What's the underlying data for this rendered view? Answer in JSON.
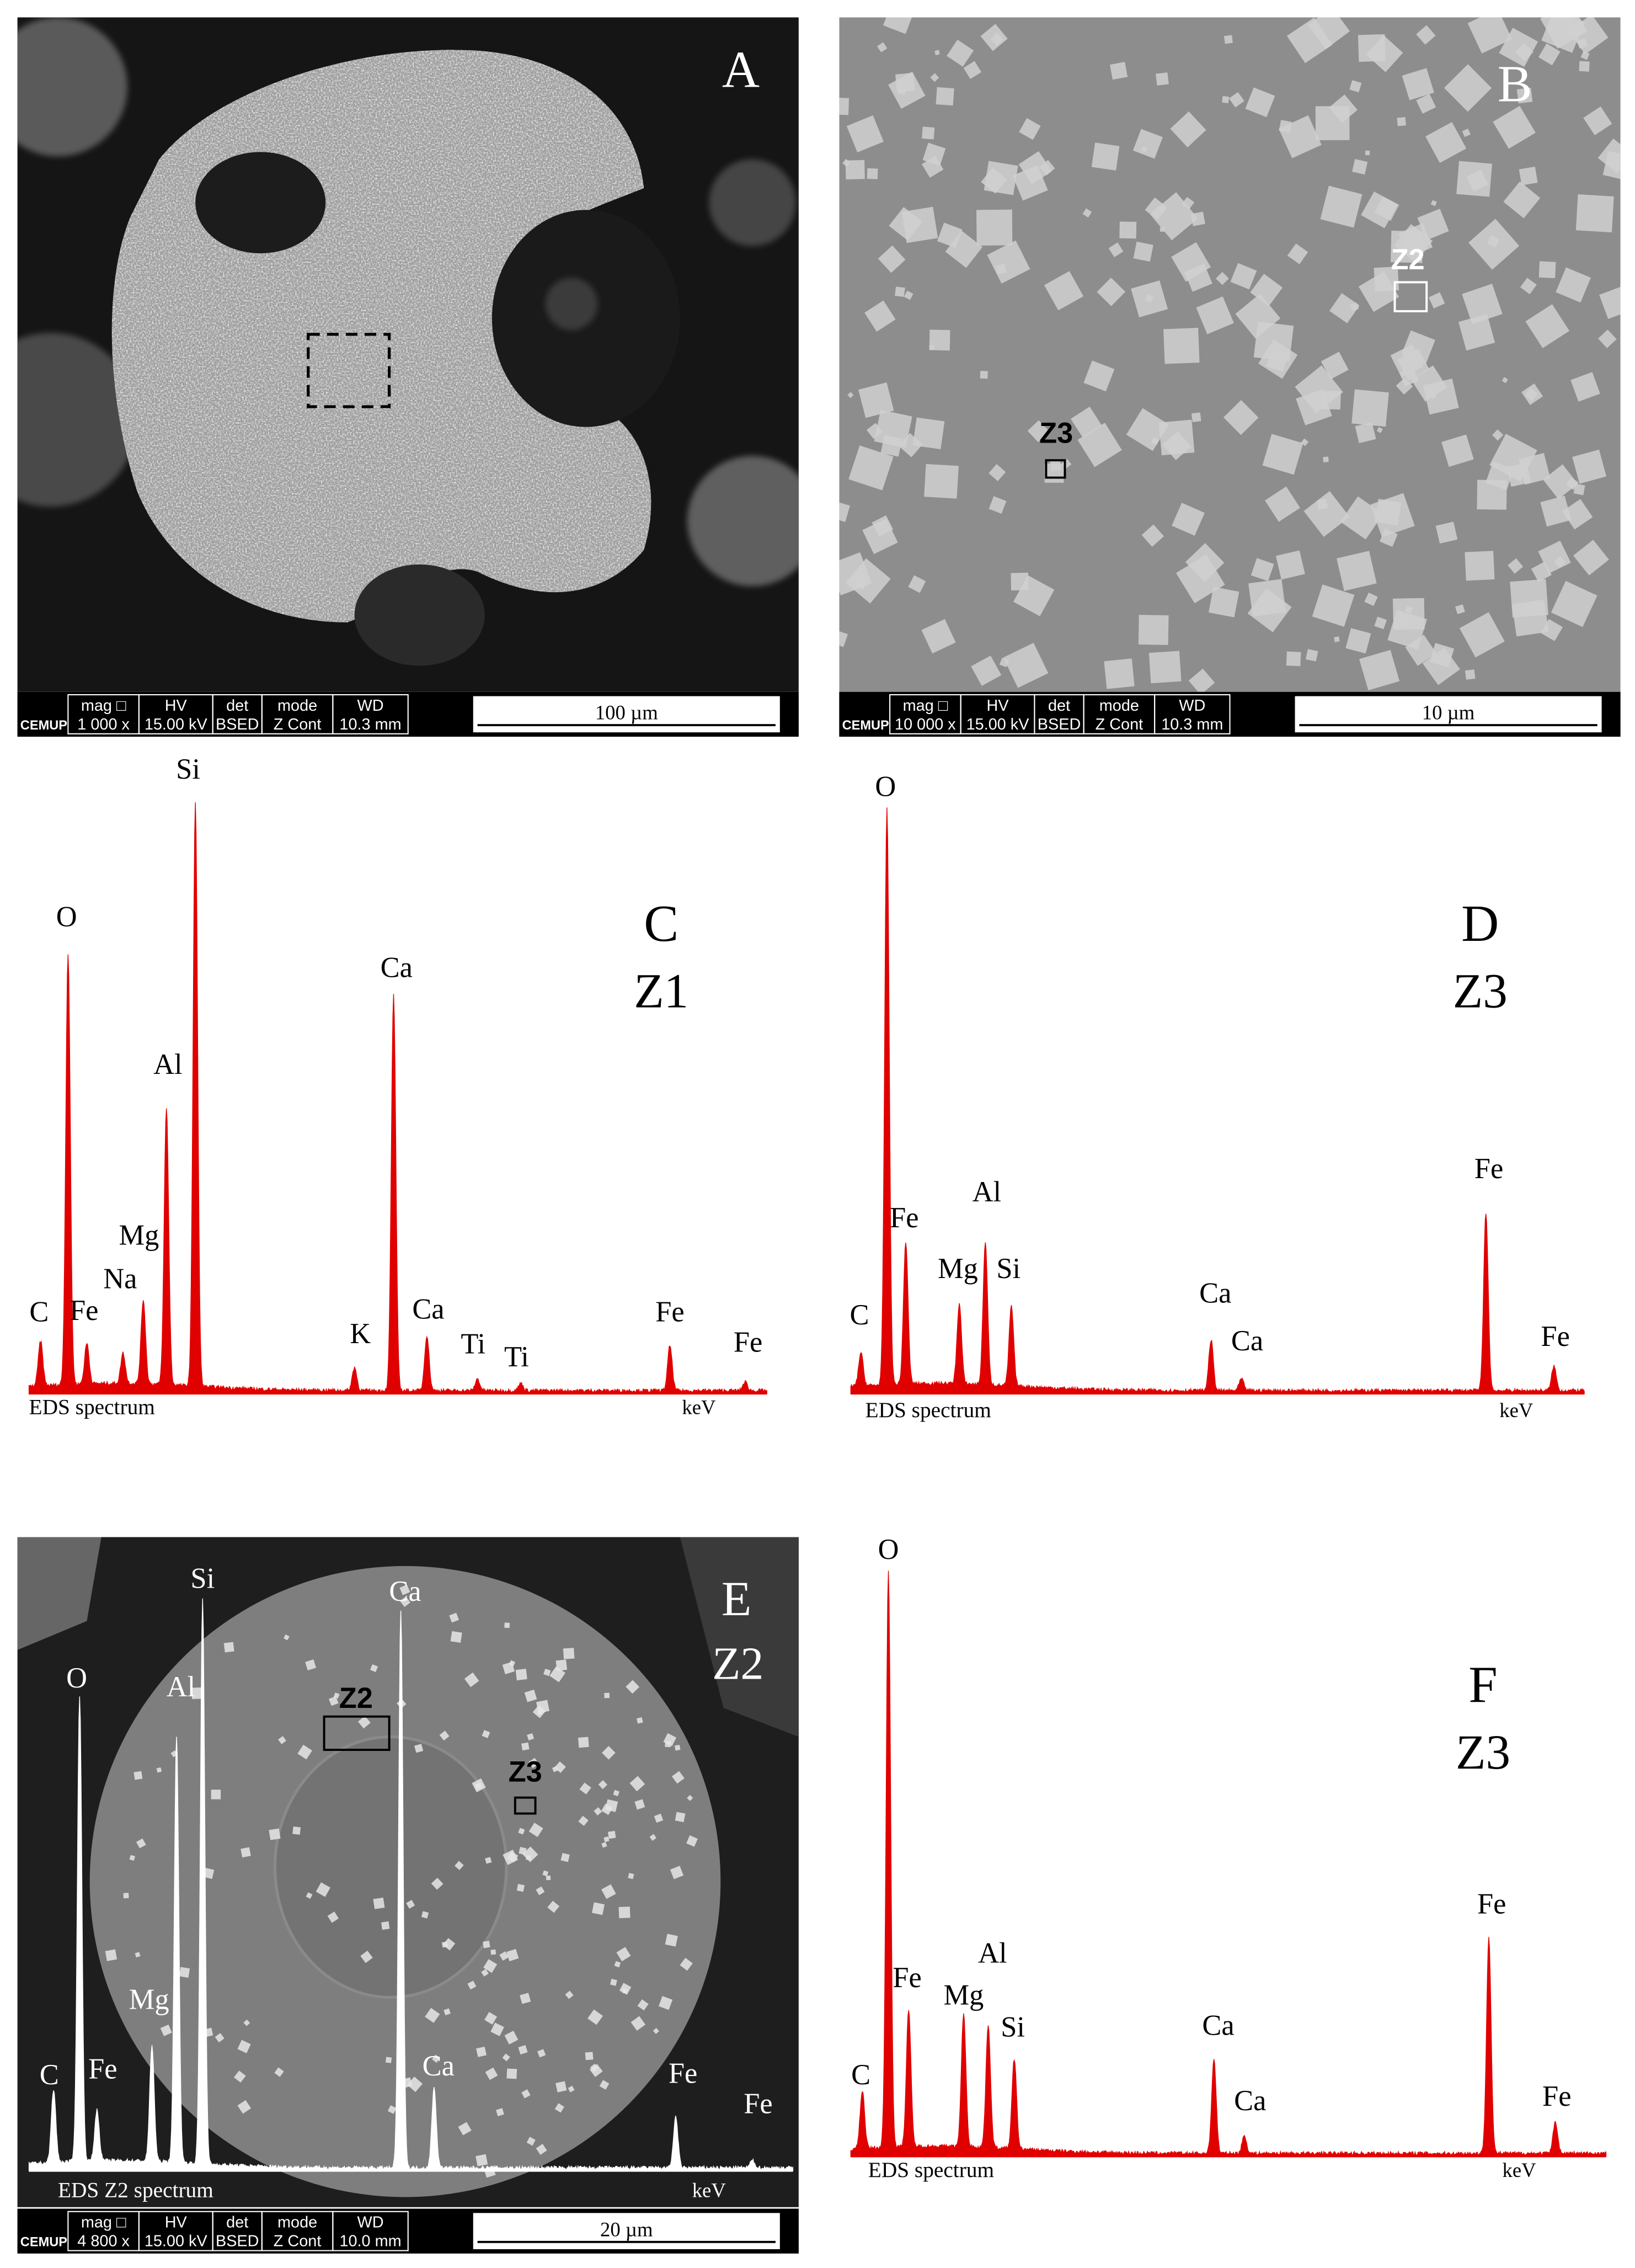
{
  "panels": [
    {
      "label": "A",
      "scale_bar": "100 µm",
      "info": {
        "logo": "CEMUP",
        "headers": [
          "mag □",
          "HV",
          "det",
          "mode",
          "WD"
        ],
        "values": [
          "1 000 x",
          "15.00 kV",
          "BSED",
          "Z Cont",
          "10.3 mm"
        ]
      }
    },
    {
      "label": "B",
      "markers": [
        "Z2",
        "Z3"
      ],
      "scale_bar": "10 µm",
      "info": {
        "logo": "CEMUP",
        "headers": [
          "mag □",
          "HV",
          "det",
          "mode",
          "WD"
        ],
        "values": [
          "10 000 x",
          "15.00 kV",
          "BSED",
          "Z Cont",
          "10.3 mm"
        ]
      }
    },
    {
      "label": "C",
      "zone": "Z1",
      "spectrum_label": "EDS spectrum",
      "axis_unit": "keV",
      "peaks": [
        "C",
        "Fe",
        "O",
        "Na",
        "Mg",
        "Al",
        "Si",
        "K",
        "Ca",
        "Ca",
        "Ti",
        "Ti",
        "Fe",
        "Fe"
      ]
    },
    {
      "label": "D",
      "zone": "Z3",
      "spectrum_label": "EDS spectrum",
      "axis_unit": "keV",
      "peaks": [
        "C",
        "Fe",
        "O",
        "Mg",
        "Al",
        "Si",
        "Ca",
        "Ca",
        "Fe",
        "Fe"
      ]
    },
    {
      "label": "E",
      "zone": "Z2",
      "markers": [
        "Z2",
        "Z3"
      ],
      "spectrum_label": "EDS Z2 spectrum",
      "axis_unit": "keV",
      "peaks": [
        "C",
        "Fe",
        "O",
        "Mg",
        "Al",
        "Si",
        "Ca",
        "Ca",
        "Fe",
        "Fe"
      ],
      "scale_bar": "20 µm",
      "info": {
        "logo": "CEMUP",
        "headers": [
          "mag □",
          "HV",
          "det",
          "mode",
          "WD"
        ],
        "values": [
          "4 800 x",
          "15.00 kV",
          "BSED",
          "Z Cont",
          "10.0 mm"
        ]
      }
    },
    {
      "label": "F",
      "zone": "Z3",
      "spectrum_label": "EDS spectrum",
      "axis_unit": "keV",
      "peaks": [
        "C",
        "Fe",
        "O",
        "Mg",
        "Al",
        "Si",
        "Ca",
        "Ca",
        "Fe",
        "Fe"
      ]
    }
  ]
}
